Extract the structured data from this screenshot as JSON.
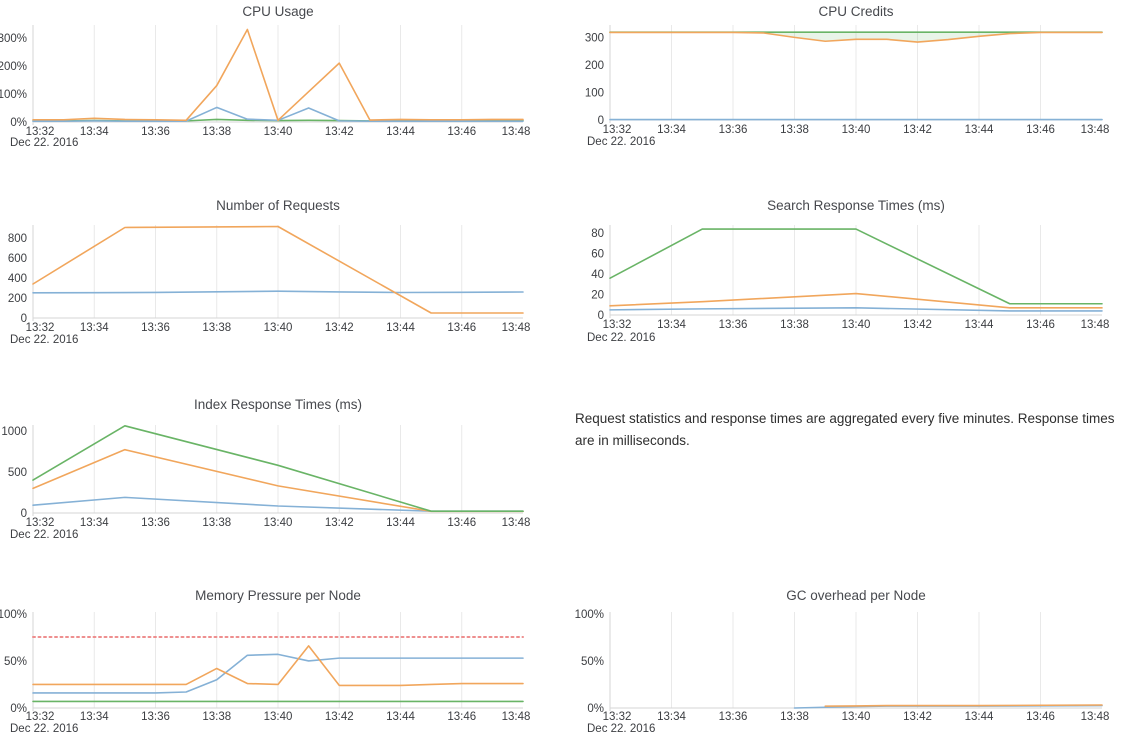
{
  "page": {
    "background": "#ffffff"
  },
  "note": {
    "text": "Request statistics and response times are aggregated every five minutes. Response times are in milliseconds."
  },
  "palette": {
    "blue": "#85b1d6",
    "orange": "#f1a65c",
    "green": "#69b466",
    "red": "#ee8e8e",
    "grid": "#e9e9e9",
    "axis": "#d5d5d5",
    "tick_text": "#3c3e42",
    "title_text": "#47494e",
    "credits_fill": "rgba(110,183,105,0.15)"
  },
  "x_axis": {
    "tick_labels": [
      "13:32",
      "13:34",
      "13:36",
      "13:38",
      "13:40",
      "13:42",
      "13:44",
      "13:46",
      "13:48"
    ],
    "date_label": "Dec 22. 2016",
    "start_minute": 32,
    "end_minute": 48
  },
  "chart_data": [
    {
      "id": "cpu-usage",
      "type": "line",
      "title": "CPU Usage",
      "ylim": [
        0,
        346
      ],
      "y_ticks": [
        {
          "label": "0%",
          "value": 0
        },
        {
          "label": "100%",
          "value": 100
        },
        {
          "label": "200%",
          "value": 200
        },
        {
          "label": "300%",
          "value": 300
        }
      ],
      "series": [
        {
          "id": "green",
          "color": "green",
          "points": [
            [
              32,
              4
            ],
            [
              33,
              4
            ],
            [
              34,
              5
            ],
            [
              35,
              4
            ],
            [
              36,
              4
            ],
            [
              37,
              4
            ],
            [
              38,
              9
            ],
            [
              39,
              6
            ],
            [
              40,
              5
            ],
            [
              41,
              6
            ],
            [
              42,
              5
            ],
            [
              43,
              4
            ],
            [
              44,
              5
            ],
            [
              45,
              4
            ],
            [
              46,
              5
            ],
            [
              47,
              5
            ],
            [
              48,
              5
            ]
          ]
        },
        {
          "id": "blue",
          "color": "blue",
          "points": [
            [
              32,
              3
            ],
            [
              33,
              3
            ],
            [
              34,
              4
            ],
            [
              35,
              3
            ],
            [
              36,
              3
            ],
            [
              37,
              3
            ],
            [
              38,
              52
            ],
            [
              39,
              10
            ],
            [
              40,
              6
            ],
            [
              41,
              50
            ],
            [
              42,
              4
            ],
            [
              43,
              3
            ],
            [
              44,
              3
            ],
            [
              45,
              3
            ],
            [
              46,
              3
            ],
            [
              47,
              3
            ],
            [
              48,
              3
            ]
          ]
        },
        {
          "id": "orange",
          "color": "orange",
          "points": [
            [
              32,
              8
            ],
            [
              33,
              8
            ],
            [
              34,
              13
            ],
            [
              35,
              9
            ],
            [
              36,
              8
            ],
            [
              37,
              6
            ],
            [
              38,
              130
            ],
            [
              39,
              330
            ],
            [
              40,
              6
            ],
            [
              41,
              108
            ],
            [
              42,
              210
            ],
            [
              43,
              7
            ],
            [
              44,
              9
            ],
            [
              45,
              8
            ],
            [
              46,
              8
            ],
            [
              47,
              9
            ],
            [
              48,
              9
            ]
          ]
        }
      ]
    },
    {
      "id": "cpu-credits",
      "type": "line",
      "title": "CPU Credits",
      "ylim": [
        0,
        345
      ],
      "y_ticks": [
        {
          "label": "0",
          "value": 0
        },
        {
          "label": "100",
          "value": 100
        },
        {
          "label": "200",
          "value": 200
        },
        {
          "label": "300",
          "value": 300
        }
      ],
      "fill_between": [
        "green",
        "orange"
      ],
      "series": [
        {
          "id": "blue",
          "color": "blue",
          "points": [
            [
              32,
              1.5
            ],
            [
              48,
              1.5
            ]
          ]
        },
        {
          "id": "green",
          "color": "green",
          "points": [
            [
              32,
              319
            ],
            [
              48,
              319
            ]
          ]
        },
        {
          "id": "orange",
          "color": "orange",
          "points": [
            [
              32,
              318
            ],
            [
              36,
              318
            ],
            [
              37,
              316
            ],
            [
              38,
              300
            ],
            [
              39,
              286
            ],
            [
              40,
              293
            ],
            [
              41,
              293
            ],
            [
              42,
              283
            ],
            [
              43,
              292
            ],
            [
              44,
              304
            ],
            [
              45,
              314
            ],
            [
              46,
              318
            ],
            [
              47,
              318
            ],
            [
              48,
              318
            ]
          ]
        }
      ]
    },
    {
      "id": "number-of-requests",
      "type": "line",
      "title": "Number of Requests",
      "ylim": [
        0,
        930
      ],
      "y_ticks": [
        {
          "label": "0",
          "value": 0
        },
        {
          "label": "200",
          "value": 200
        },
        {
          "label": "400",
          "value": 400
        },
        {
          "label": "600",
          "value": 600
        },
        {
          "label": "800",
          "value": 800
        }
      ],
      "series": [
        {
          "id": "blue",
          "color": "blue",
          "points": [
            [
              32,
              252
            ],
            [
              34,
              253
            ],
            [
              36,
              256
            ],
            [
              38,
              262
            ],
            [
              40,
              268
            ],
            [
              42,
              261
            ],
            [
              44,
              255
            ],
            [
              46,
              257
            ],
            [
              48,
              260
            ]
          ]
        },
        {
          "id": "orange",
          "color": "orange",
          "points": [
            [
              32,
              340
            ],
            [
              35,
              905
            ],
            [
              40,
              915
            ],
            [
              45,
              50
            ],
            [
              48,
              50
            ]
          ]
        }
      ]
    },
    {
      "id": "search-response-times",
      "type": "line",
      "title": "Search Response Times (ms)",
      "ylim": [
        0,
        88
      ],
      "y_ticks": [
        {
          "label": "0",
          "value": 0
        },
        {
          "label": "20",
          "value": 20
        },
        {
          "label": "40",
          "value": 40
        },
        {
          "label": "60",
          "value": 60
        },
        {
          "label": "80",
          "value": 80
        }
      ],
      "series": [
        {
          "id": "blue",
          "color": "blue",
          "points": [
            [
              32,
              5
            ],
            [
              35,
              6
            ],
            [
              40,
              7
            ],
            [
              45,
              4
            ],
            [
              48,
              4
            ]
          ]
        },
        {
          "id": "orange",
          "color": "orange",
          "points": [
            [
              32,
              9
            ],
            [
              35,
              13
            ],
            [
              40,
              21
            ],
            [
              45,
              7
            ],
            [
              48,
              7
            ]
          ]
        },
        {
          "id": "green",
          "color": "green",
          "points": [
            [
              32,
              36
            ],
            [
              35,
              84
            ],
            [
              40,
              84
            ],
            [
              45,
              11
            ],
            [
              48,
              11
            ]
          ]
        }
      ]
    },
    {
      "id": "index-response-times",
      "type": "line",
      "title": "Index Response Times (ms)",
      "ylim": [
        0,
        1070
      ],
      "y_ticks": [
        {
          "label": "0",
          "value": 0
        },
        {
          "label": "500",
          "value": 500
        },
        {
          "label": "1000",
          "value": 1000
        }
      ],
      "series": [
        {
          "id": "blue",
          "color": "blue",
          "points": [
            [
              32,
              95
            ],
            [
              35,
              190
            ],
            [
              40,
              85
            ],
            [
              45,
              22
            ],
            [
              48,
              22
            ]
          ]
        },
        {
          "id": "orange",
          "color": "orange",
          "points": [
            [
              32,
              300
            ],
            [
              35,
              770
            ],
            [
              40,
              330
            ],
            [
              45,
              20
            ],
            [
              48,
              20
            ]
          ]
        },
        {
          "id": "green",
          "color": "green",
          "points": [
            [
              32,
              400
            ],
            [
              35,
              1060
            ],
            [
              40,
              580
            ],
            [
              45,
              22
            ],
            [
              48,
              22
            ]
          ]
        }
      ]
    },
    {
      "id": "memory-pressure",
      "type": "line",
      "title": "Memory Pressure per Node",
      "ylim": [
        0,
        102
      ],
      "y_ticks": [
        {
          "label": "0%",
          "value": 0
        },
        {
          "label": "50%",
          "value": 50
        },
        {
          "label": "100%",
          "value": 100
        }
      ],
      "series": [
        {
          "id": "red-threshold",
          "color": "red",
          "dash": "2,3.5",
          "width": 2,
          "points": [
            [
              32,
              75.5
            ],
            [
              48,
              75.5
            ]
          ]
        },
        {
          "id": "green",
          "color": "green",
          "points": [
            [
              32,
              7
            ],
            [
              48,
              7
            ]
          ]
        },
        {
          "id": "blue",
          "color": "blue",
          "points": [
            [
              32,
              16
            ],
            [
              33,
              16
            ],
            [
              34,
              16
            ],
            [
              35,
              16
            ],
            [
              36,
              16
            ],
            [
              37,
              17
            ],
            [
              38,
              30
            ],
            [
              39,
              56
            ],
            [
              40,
              57
            ],
            [
              41,
              50
            ],
            [
              42,
              53
            ],
            [
              43,
              53
            ],
            [
              44,
              53
            ],
            [
              45,
              53
            ],
            [
              46,
              53
            ],
            [
              47,
              53
            ],
            [
              48,
              53
            ]
          ]
        },
        {
          "id": "orange",
          "color": "orange",
          "points": [
            [
              32,
              25
            ],
            [
              33,
              25
            ],
            [
              34,
              25
            ],
            [
              35,
              25
            ],
            [
              36,
              25
            ],
            [
              37,
              25
            ],
            [
              38,
              42
            ],
            [
              39,
              26
            ],
            [
              40,
              25
            ],
            [
              41,
              66
            ],
            [
              42,
              24
            ],
            [
              43,
              24
            ],
            [
              44,
              24
            ],
            [
              45,
              25
            ],
            [
              46,
              26
            ],
            [
              47,
              26
            ],
            [
              48,
              26
            ]
          ]
        }
      ]
    },
    {
      "id": "gc-overhead",
      "type": "line",
      "title": "GC overhead per Node",
      "ylim": [
        0,
        102
      ],
      "y_ticks": [
        {
          "label": "0%",
          "value": 0
        },
        {
          "label": "50%",
          "value": 50
        },
        {
          "label": "100%",
          "value": 100
        }
      ],
      "series": [
        {
          "id": "blue",
          "color": "blue",
          "points": [
            [
              38,
              0
            ],
            [
              39,
              0.8
            ],
            [
              40,
              1.5
            ],
            [
              41,
              2
            ],
            [
              44,
              2
            ],
            [
              48,
              2.6
            ]
          ]
        },
        {
          "id": "orange",
          "color": "orange",
          "points": [
            [
              39,
              2
            ],
            [
              40,
              2.2
            ],
            [
              41,
              2.6
            ],
            [
              44,
              2.6
            ],
            [
              48,
              3.2
            ]
          ]
        }
      ]
    }
  ]
}
